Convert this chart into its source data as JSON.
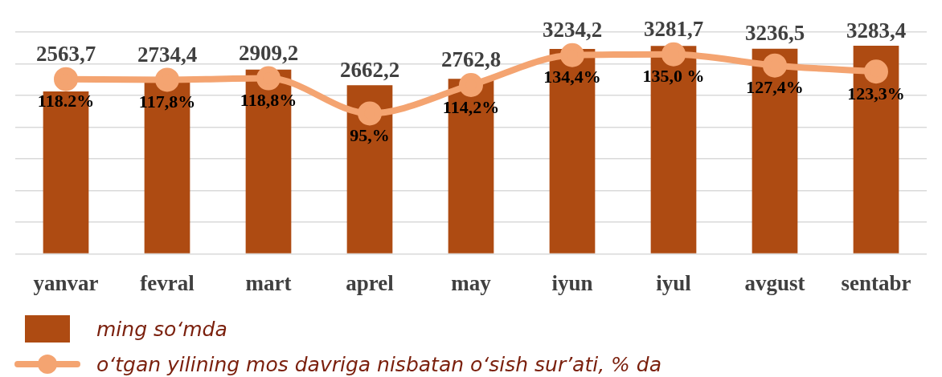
{
  "chart_data": {
    "type": "bar",
    "categories": [
      "yanvar",
      "fevral",
      "mart",
      "aprel",
      "may",
      "iyun",
      "iyul",
      "avgust",
      "sentabr"
    ],
    "ylim": [
      0,
      3500
    ],
    "yticks": [
      {
        "value": 0,
        "label": null
      },
      {
        "value": 500,
        "label": null
      },
      {
        "value": 1000,
        "label": null
      },
      {
        "value": 1500,
        "label": null
      },
      {
        "value": 2000,
        "label": null
      },
      {
        "value": 2500,
        "label": null
      },
      {
        "value": 3000,
        "label": null
      },
      {
        "value": 3500,
        "label": null
      }
    ],
    "y2lim": [
      0,
      150
    ],
    "grid": "y",
    "legend": "bottom left",
    "tick_labels": "x",
    "series": [
      {
        "name": "ming so‘mda",
        "color": "#ae4b12",
        "values": [
          2563.7,
          2734.4,
          2909.2,
          2662.2,
          2762.8,
          3234.2,
          3281.7,
          3236.5,
          3283.4
        ],
        "value_labels": [
          "2563,7",
          "2734,4",
          "2909,2",
          "2662,2",
          "2762,8",
          "3234,2",
          "3281,7",
          "3236,5",
          "3283,4"
        ]
      },
      {
        "name": "o‘tgan yilining mos davriga nisbatan o‘sish sur’ati, % da",
        "type": "line",
        "axis": "y2",
        "color": "#f4a471",
        "marker": "circle",
        "line_style": "solid",
        "values": [
          118.2,
          117.8,
          118.8,
          95,
          114.2,
          134.4,
          135.0,
          127.4,
          123.3
        ],
        "value_labels": [
          "118.2%",
          "117,8%",
          "118,8%",
          "95,%",
          "114,2%",
          "134,4%",
          "135,0 %",
          "127,4%",
          "123,3%"
        ]
      }
    ]
  }
}
